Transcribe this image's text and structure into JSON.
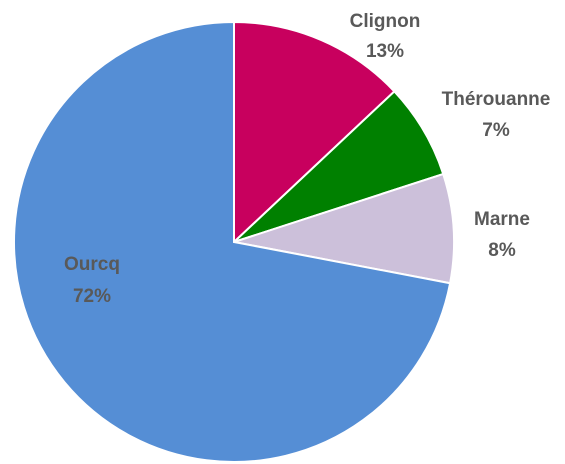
{
  "chart_data": {
    "type": "pie",
    "start": "top",
    "direction": "clockwise",
    "slices": [
      {
        "label": "Clignon",
        "value": 13,
        "value_label": "13%",
        "color": "#c8005e"
      },
      {
        "label": "Thérouanne",
        "value": 7,
        "value_label": "7%",
        "color": "#008000"
      },
      {
        "label": "Marne",
        "value": 8,
        "value_label": "8%",
        "color": "#ccc0da"
      },
      {
        "label": "Ourcq",
        "value": 72,
        "value_label": "72%",
        "color": "#558ed5"
      }
    ]
  }
}
